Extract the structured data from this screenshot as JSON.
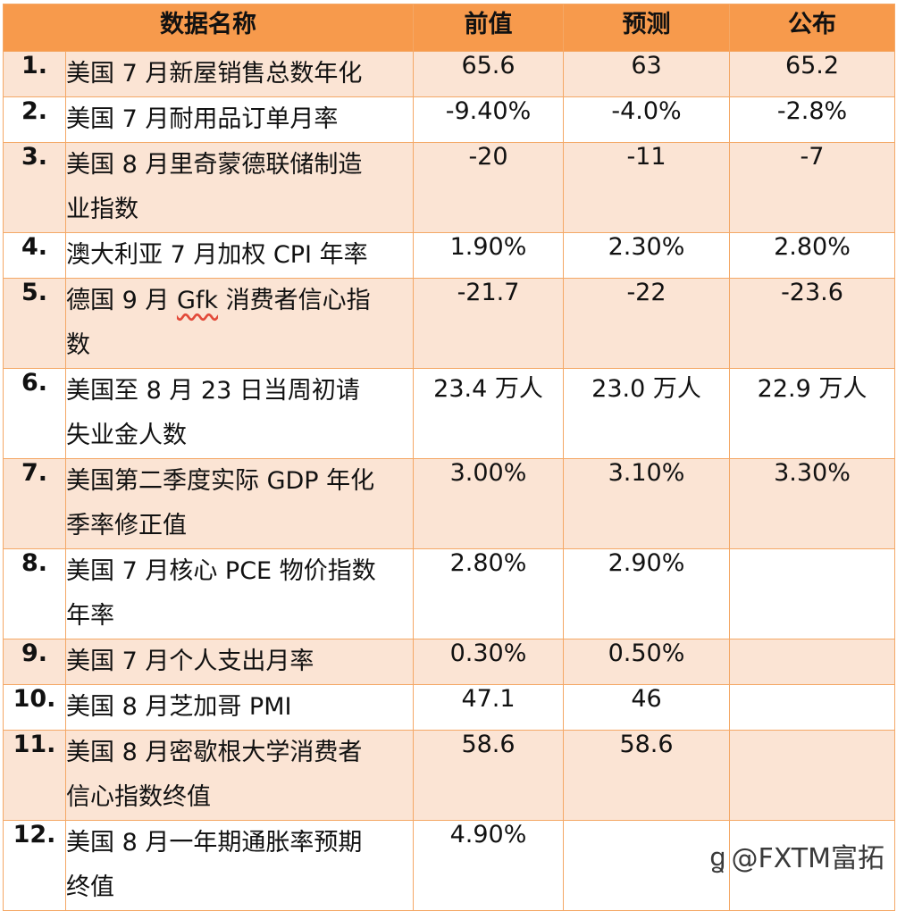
{
  "header": {
    "name": "数据名称",
    "prev": "前值",
    "forecast": "预测",
    "actual": "公布"
  },
  "rows": [
    {
      "num": "1.",
      "name_lines": [
        "美国 7 月新屋销售总数年化"
      ],
      "prev": "65.6",
      "forecast": "63",
      "actual": "65.2"
    },
    {
      "num": "2.",
      "name_lines": [
        "美国 7 月耐用品订单月率"
      ],
      "prev": "-9.40%",
      "forecast": "-4.0%",
      "actual": "-2.8%"
    },
    {
      "num": "3.",
      "name_lines": [
        "美国 8 月里奇蒙德联储制造",
        "业指数"
      ],
      "prev": "-20",
      "forecast": "-11",
      "actual": "-7"
    },
    {
      "num": "4.",
      "name_lines": [
        "澳大利亚 7 月加权 CPI 年率"
      ],
      "prev": "1.90%",
      "forecast": "2.30%",
      "actual": "2.80%"
    },
    {
      "num": "5.",
      "name_lines": [
        "德国 9 月 Gfk 消费者信心指",
        "数"
      ],
      "prev": "-21.7",
      "forecast": "-22",
      "actual": "-23.6"
    },
    {
      "num": "6.",
      "name_lines": [
        "美国至 8 月 23 日当周初请",
        "失业金人数"
      ],
      "prev": "23.4 万人",
      "forecast": "23.0 万人",
      "actual": "22.9 万人"
    },
    {
      "num": "7.",
      "name_lines": [
        "美国第二季度实际 GDP 年化",
        "季率修正值"
      ],
      "prev": "3.00%",
      "forecast": "3.10%",
      "actual": "3.30%"
    },
    {
      "num": "8.",
      "name_lines": [
        "美国 7 月核心 PCE 物价指数",
        "年率"
      ],
      "prev": "2.80%",
      "forecast": "2.90%",
      "actual": ""
    },
    {
      "num": "9.",
      "name_lines": [
        "美国 7 月个人支出月率"
      ],
      "prev": "0.30%",
      "forecast": "0.50%",
      "actual": ""
    },
    {
      "num": "10.",
      "name_lines": [
        "美国 8 月芝加哥 PMI"
      ],
      "prev": "47.1",
      "forecast": "46",
      "actual": ""
    },
    {
      "num": "11.",
      "name_lines": [
        "美国 8 月密歇根大学消费者",
        "信心指数终值"
      ],
      "prev": "58.6",
      "forecast": "58.6",
      "actual": ""
    },
    {
      "num": "12.",
      "name_lines": [
        "美国 8 月一年期通胀率预期",
        "终值"
      ],
      "prev": "4.90%",
      "forecast": "",
      "actual": ""
    }
  ],
  "watermark": {
    "text": "@FXTM富拓"
  },
  "colors": {
    "header_bg": "#f79a4c",
    "shade_bg": "#fbe4d4",
    "border": "#f4a866",
    "actual_text": "#ee1111"
  }
}
